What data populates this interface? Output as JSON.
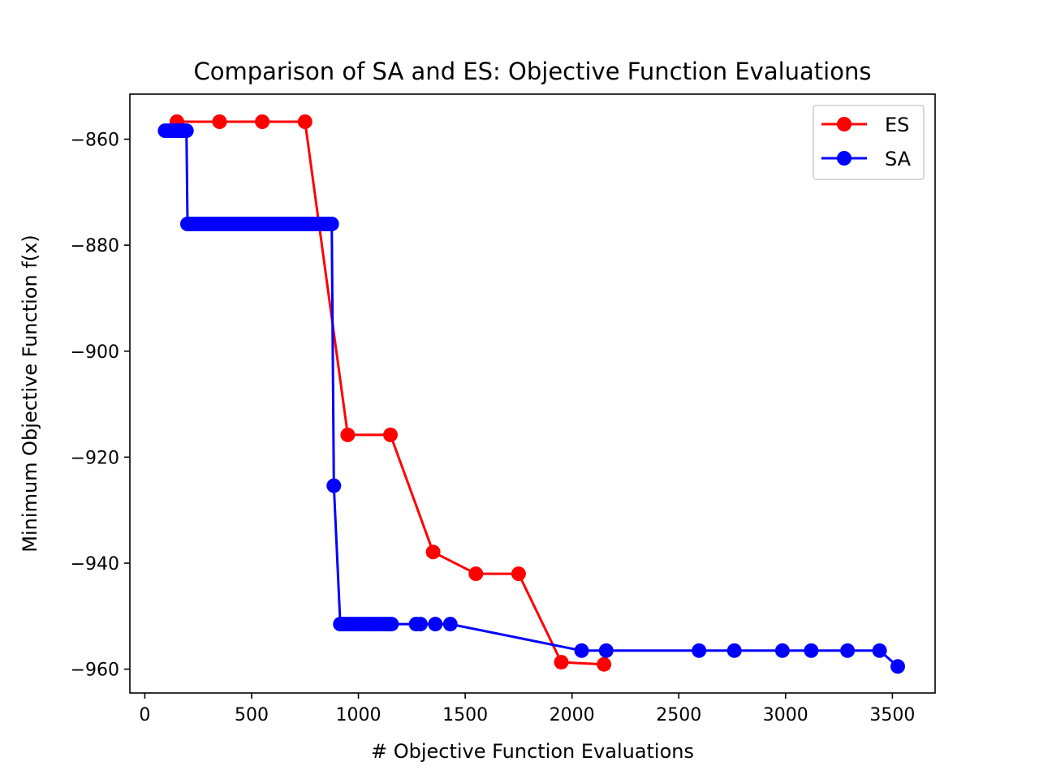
{
  "chart_data": {
    "type": "line",
    "title": "Comparison of SA and ES: Objective Function Evaluations",
    "xlabel": "# Objective Function Evaluations",
    "ylabel": "Minimum Objective Function f(x)",
    "xlim": [
      -70,
      3700
    ],
    "ylim": [
      -964.5,
      -851.5
    ],
    "xticks": [
      0,
      500,
      1000,
      1500,
      2000,
      2500,
      3000,
      3500
    ],
    "xtick_labels": [
      "0",
      "500",
      "1000",
      "1500",
      "2000",
      "2500",
      "3000",
      "3500"
    ],
    "yticks": [
      -860,
      -880,
      -900,
      -920,
      -940,
      -960
    ],
    "ytick_labels": [
      "−860",
      "−880",
      "−900",
      "−920",
      "−940",
      "−960"
    ],
    "grid": false,
    "legend": "top-right",
    "series": [
      {
        "name": "ES",
        "color": "#ff0000",
        "marker": "circle",
        "x": [
          150,
          350,
          550,
          750,
          950,
          1150,
          1350,
          1550,
          1750,
          1950,
          2150
        ],
        "y": [
          -856.7,
          -856.7,
          -856.7,
          -856.7,
          -915.8,
          -915.8,
          -937.9,
          -942.0,
          -942.0,
          -958.7,
          -959.1
        ]
      },
      {
        "name": "SA",
        "color": "#0000ff",
        "marker": "circle",
        "x": [
          95,
          105,
          115,
          125,
          135,
          145,
          155,
          165,
          175,
          185,
          195,
          200,
          215,
          230,
          245,
          260,
          275,
          290,
          305,
          320,
          335,
          350,
          365,
          380,
          395,
          410,
          425,
          440,
          455,
          470,
          485,
          500,
          515,
          530,
          545,
          560,
          575,
          590,
          605,
          620,
          635,
          650,
          665,
          680,
          695,
          710,
          725,
          740,
          755,
          770,
          785,
          800,
          815,
          830,
          845,
          860,
          875,
          885,
          915,
          930,
          945,
          960,
          975,
          990,
          1005,
          1020,
          1035,
          1050,
          1065,
          1080,
          1095,
          1110,
          1125,
          1140,
          1155,
          1270,
          1290,
          1360,
          1430,
          2045,
          2160,
          2595,
          2760,
          2985,
          3120,
          3290,
          3440,
          3525
        ],
        "y": [
          -858.4,
          -858.4,
          -858.4,
          -858.4,
          -858.4,
          -858.4,
          -858.4,
          -858.4,
          -858.4,
          -858.4,
          -858.4,
          -876.0,
          -876.0,
          -876.0,
          -876.0,
          -876.0,
          -876.0,
          -876.0,
          -876.0,
          -876.0,
          -876.0,
          -876.0,
          -876.0,
          -876.0,
          -876.0,
          -876.0,
          -876.0,
          -876.0,
          -876.0,
          -876.0,
          -876.0,
          -876.0,
          -876.0,
          -876.0,
          -876.0,
          -876.0,
          -876.0,
          -876.0,
          -876.0,
          -876.0,
          -876.0,
          -876.0,
          -876.0,
          -876.0,
          -876.0,
          -876.0,
          -876.0,
          -876.0,
          -876.0,
          -876.0,
          -876.0,
          -876.0,
          -876.0,
          -876.0,
          -876.0,
          -876.0,
          -876.0,
          -925.4,
          -951.5,
          -951.5,
          -951.5,
          -951.5,
          -951.5,
          -951.5,
          -951.5,
          -951.5,
          -951.5,
          -951.5,
          -951.5,
          -951.5,
          -951.5,
          -951.5,
          -951.5,
          -951.5,
          -951.5,
          -951.5,
          -951.5,
          -951.5,
          -951.5,
          -956.5,
          -956.5,
          -956.5,
          -956.5,
          -956.5,
          -956.5,
          -956.5,
          -956.5,
          -959.5
        ]
      }
    ]
  }
}
